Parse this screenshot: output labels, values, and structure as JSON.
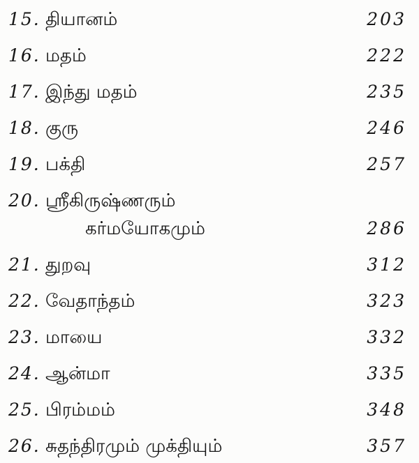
{
  "page": {
    "background": "#fcfcfb",
    "text_color": "#161616"
  },
  "toc": {
    "entries": [
      {
        "number": "15.",
        "title_lines": [
          "தியானம்"
        ],
        "page": "203"
      },
      {
        "number": "16.",
        "title_lines": [
          "மதம்"
        ],
        "page": "222"
      },
      {
        "number": "17.",
        "title_lines": [
          "இந்து மதம்"
        ],
        "page": "235"
      },
      {
        "number": "18.",
        "title_lines": [
          "குரு"
        ],
        "page": "246"
      },
      {
        "number": "19.",
        "title_lines": [
          "பக்தி"
        ],
        "page": "257"
      },
      {
        "number": "20.",
        "title_lines": [
          "ஸ்ரீகிருஷ்ணரும்",
          "கர்மயோகமும்"
        ],
        "page": "286"
      },
      {
        "number": "21.",
        "title_lines": [
          "துறவு"
        ],
        "page": "312"
      },
      {
        "number": "22.",
        "title_lines": [
          "வேதாந்தம்"
        ],
        "page": "323"
      },
      {
        "number": "23.",
        "title_lines": [
          "மாயை"
        ],
        "page": "332"
      },
      {
        "number": "24.",
        "title_lines": [
          "ஆன்மா"
        ],
        "page": "335"
      },
      {
        "number": "25.",
        "title_lines": [
          "பிரம்மம்"
        ],
        "page": "348"
      },
      {
        "number": "26.",
        "title_lines": [
          "சுதந்திரமும் முக்தியும்"
        ],
        "page": "357"
      }
    ]
  }
}
